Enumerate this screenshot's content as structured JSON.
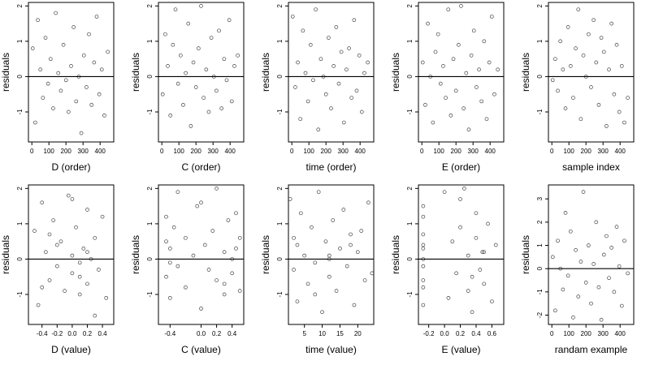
{
  "chart_data": [
    {
      "type": "scatter",
      "x_label": "D (order)",
      "y_label": "residuals",
      "xlim": [
        -20,
        480
      ],
      "ylim": [
        -1.85,
        2.1
      ],
      "xticks": [
        0,
        100,
        200,
        300,
        400
      ],
      "yticks": [
        -1,
        0,
        1,
        2
      ],
      "hline": 0,
      "series": [
        {
          "color": "#444444",
          "x": [
            5,
            20,
            35,
            50,
            65,
            80,
            95,
            110,
            125,
            140,
            155,
            170,
            185,
            200,
            215,
            230,
            245,
            260,
            275,
            290,
            305,
            320,
            335,
            350,
            365,
            380,
            395,
            410,
            425,
            445
          ],
          "values": [
            0.8,
            -1.3,
            1.6,
            0.2,
            -0.6,
            1.1,
            -0.2,
            0.5,
            -0.9,
            1.8,
            0.1,
            -0.4,
            0.9,
            -0.1,
            -1.0,
            0.3,
            1.4,
            -0.7,
            0.0,
            -1.6,
            0.6,
            -0.3,
            1.2,
            -0.8,
            0.4,
            1.7,
            -0.5,
            0.2,
            -1.1,
            0.7
          ]
        }
      ]
    },
    {
      "type": "scatter",
      "x_label": "C (order)",
      "y_label": "residuals",
      "xlim": [
        -20,
        480
      ],
      "ylim": [
        -1.85,
        2.1
      ],
      "xticks": [
        0,
        100,
        200,
        300,
        400
      ],
      "yticks": [
        -1,
        0,
        1,
        2
      ],
      "hline": 0,
      "series": [
        {
          "color": "#444444",
          "x": [
            5,
            20,
            35,
            50,
            65,
            80,
            95,
            110,
            125,
            140,
            155,
            170,
            185,
            200,
            215,
            230,
            245,
            260,
            275,
            290,
            305,
            320,
            335,
            350,
            365,
            380,
            395,
            410,
            425,
            445
          ],
          "values": [
            -0.5,
            1.2,
            0.3,
            -1.1,
            0.9,
            1.9,
            -0.2,
            0.6,
            -0.8,
            0.1,
            1.5,
            -1.4,
            0.4,
            -0.3,
            0.8,
            2.0,
            -0.6,
            0.2,
            -1.0,
            1.1,
            0.0,
            -0.4,
            1.3,
            -0.9,
            0.5,
            -0.1,
            1.6,
            -0.7,
            0.3,
            0.6
          ]
        }
      ]
    },
    {
      "type": "scatter",
      "x_label": "time (order)",
      "y_label": "residuals",
      "xlim": [
        -20,
        480
      ],
      "ylim": [
        -1.85,
        2.1
      ],
      "xticks": [
        0,
        100,
        200,
        300,
        400
      ],
      "yticks": [
        -1,
        0,
        1,
        2
      ],
      "hline": 0,
      "series": [
        {
          "color": "#444444",
          "x": [
            5,
            20,
            35,
            50,
            65,
            80,
            95,
            110,
            125,
            140,
            155,
            170,
            185,
            200,
            215,
            230,
            245,
            260,
            275,
            290,
            305,
            320,
            335,
            350,
            365,
            380,
            395,
            410,
            425,
            445
          ],
          "values": [
            1.7,
            -0.3,
            0.4,
            -1.2,
            1.3,
            0.1,
            -0.7,
            0.9,
            -0.1,
            1.9,
            -1.5,
            0.5,
            0.0,
            -0.5,
            1.1,
            -0.9,
            0.3,
            1.4,
            -0.2,
            0.7,
            -1.3,
            0.2,
            0.8,
            -0.6,
            1.6,
            -0.4,
            0.6,
            -1.0,
            0.1,
            0.4
          ]
        }
      ]
    },
    {
      "type": "scatter",
      "x_label": "E (order)",
      "y_label": "residuals",
      "xlim": [
        -20,
        480
      ],
      "ylim": [
        -1.85,
        2.1
      ],
      "xticks": [
        0,
        100,
        200,
        300,
        400
      ],
      "yticks": [
        -1,
        0,
        1,
        2
      ],
      "hline": 0,
      "series": [
        {
          "color": "#444444",
          "x": [
            5,
            20,
            35,
            50,
            65,
            80,
            95,
            110,
            125,
            140,
            155,
            170,
            185,
            200,
            215,
            230,
            245,
            260,
            275,
            290,
            305,
            320,
            335,
            350,
            365,
            380,
            395,
            410,
            425,
            445
          ],
          "values": [
            0.4,
            -0.8,
            1.5,
            0.0,
            -1.3,
            0.7,
            1.2,
            -0.2,
            0.3,
            -0.6,
            1.9,
            -1.1,
            0.5,
            -0.4,
            0.9,
            2.0,
            -0.9,
            0.1,
            -1.5,
            0.6,
            1.3,
            -0.3,
            0.2,
            -0.7,
            1.0,
            -1.2,
            0.4,
            1.7,
            -0.5,
            0.2
          ]
        }
      ]
    },
    {
      "type": "scatter",
      "x_label": "sample index",
      "y_label": "residuals",
      "xlim": [
        -20,
        480
      ],
      "ylim": [
        -1.85,
        2.1
      ],
      "xticks": [
        0,
        100,
        200,
        300,
        400
      ],
      "yticks": [
        -1,
        0,
        1,
        2
      ],
      "hline": 0,
      "series": [
        {
          "color": "#444444",
          "x": [
            5,
            20,
            35,
            50,
            65,
            80,
            95,
            110,
            125,
            140,
            155,
            170,
            185,
            200,
            215,
            230,
            245,
            260,
            275,
            290,
            305,
            320,
            335,
            350,
            365,
            380,
            395,
            410,
            425,
            445
          ],
          "values": [
            -0.1,
            0.5,
            -0.4,
            1.0,
            0.2,
            -0.9,
            1.4,
            0.3,
            -0.6,
            0.8,
            1.9,
            -1.2,
            0.6,
            0.0,
            1.2,
            -0.3,
            1.6,
            0.4,
            -0.8,
            1.1,
            0.7,
            -1.4,
            0.2,
            1.5,
            -0.5,
            0.9,
            -1.0,
            0.3,
            -1.3,
            -0.6
          ]
        }
      ]
    },
    {
      "type": "scatter",
      "x_label": "D (value)",
      "y_label": "residuals",
      "xlim": [
        -0.58,
        0.55
      ],
      "ylim": [
        -1.85,
        2.1
      ],
      "xticks": [
        -0.4,
        -0.2,
        {
          "value": 0,
          "label": "0.0"
        },
        0.2,
        0.4
      ],
      "yticks": [
        -1,
        0,
        1,
        2
      ],
      "hline": 0,
      "series": [
        {
          "color": "#444444",
          "x": [
            -0.5,
            -0.45,
            -0.4,
            -0.35,
            -0.3,
            -0.25,
            -0.2,
            -0.15,
            -0.1,
            -0.05,
            0.0,
            0.0,
            0.05,
            0.1,
            0.1,
            0.15,
            0.2,
            0.2,
            0.25,
            0.3,
            0.3,
            0.35,
            0.4,
            -0.4,
            -0.2,
            0.0,
            0.1,
            0.2,
            0.45,
            -0.3
          ],
          "values": [
            0.8,
            -1.3,
            1.6,
            0.2,
            -0.6,
            1.1,
            -0.2,
            0.5,
            -0.9,
            1.8,
            0.1,
            -0.4,
            0.9,
            -0.1,
            -1.0,
            0.3,
            1.4,
            -0.7,
            0.0,
            -1.6,
            0.6,
            -0.3,
            1.2,
            -0.8,
            0.4,
            1.7,
            -0.5,
            0.2,
            -1.1,
            0.7
          ]
        }
      ]
    },
    {
      "type": "scatter",
      "x_label": "C (value)",
      "y_label": "residuals",
      "xlim": [
        -0.55,
        0.55
      ],
      "ylim": [
        -1.85,
        2.1
      ],
      "xticks": [
        -0.4,
        {
          "value": 0,
          "label": "0.0"
        },
        0.2,
        0.4
      ],
      "yticks": [
        -1,
        0,
        1,
        2
      ],
      "hline": 0,
      "series": [
        {
          "color": "#444444",
          "x": [
            -0.45,
            -0.45,
            -0.4,
            -0.4,
            -0.35,
            -0.3,
            -0.3,
            -0.2,
            -0.2,
            -0.1,
            -0.05,
            0.0,
            0.05,
            0.1,
            0.15,
            0.2,
            0.2,
            0.3,
            0.3,
            0.35,
            0.4,
            0.4,
            0.45,
            0.5,
            -0.45,
            -0.4,
            0.0,
            0.3,
            0.45,
            0.5
          ],
          "values": [
            -0.5,
            1.2,
            0.3,
            -1.1,
            0.9,
            1.9,
            -0.2,
            0.6,
            -0.8,
            0.1,
            1.5,
            -1.4,
            0.4,
            -0.3,
            0.8,
            2.0,
            -0.6,
            0.2,
            -1.0,
            1.1,
            0.0,
            -0.4,
            1.3,
            -0.9,
            0.5,
            -0.1,
            1.6,
            -0.7,
            0.3,
            0.6
          ]
        }
      ]
    },
    {
      "type": "scatter",
      "x_label": "time (value)",
      "y_label": "residuals",
      "xlim": [
        0.5,
        24.5
      ],
      "ylim": [
        -1.85,
        2.1
      ],
      "xticks": [
        5,
        10,
        15,
        20
      ],
      "yticks": [
        -1,
        0,
        1,
        2
      ],
      "hline": 0,
      "series": [
        {
          "color": "#444444",
          "x": [
            1,
            2,
            3,
            3,
            4,
            5,
            6,
            7,
            8,
            9,
            10,
            11,
            12,
            12,
            13,
            14,
            15,
            16,
            17,
            18,
            19,
            20,
            21,
            22,
            23,
            24,
            2,
            8,
            12,
            18
          ],
          "values": [
            1.7,
            -0.3,
            0.4,
            -1.2,
            1.3,
            0.1,
            -0.7,
            0.9,
            -0.1,
            1.9,
            -1.5,
            0.5,
            0.0,
            -0.5,
            1.1,
            -0.9,
            0.3,
            1.4,
            -0.2,
            0.7,
            -1.3,
            0.2,
            0.8,
            -0.6,
            1.6,
            -0.4,
            0.6,
            -1.0,
            0.1,
            0.4
          ]
        }
      ]
    },
    {
      "type": "scatter",
      "x_label": "E (value)",
      "y_label": "residuals",
      "xlim": [
        -0.33,
        0.75
      ],
      "ylim": [
        -1.85,
        2.1
      ],
      "xticks": [
        -0.2,
        {
          "value": 0,
          "label": "0.0"
        },
        0.2,
        0.4,
        0.6
      ],
      "yticks": [
        -1,
        0,
        1,
        2
      ],
      "hline": 0,
      "series": [
        {
          "color": "#444444",
          "x": [
            -0.27,
            -0.27,
            -0.27,
            -0.27,
            -0.27,
            -0.27,
            -0.27,
            -0.27,
            -0.27,
            -0.27,
            0.0,
            0.05,
            0.1,
            0.15,
            0.2,
            0.25,
            0.3,
            0.3,
            0.35,
            0.4,
            0.4,
            0.45,
            0.5,
            0.5,
            0.55,
            0.6,
            0.65,
            0.2,
            0.35,
            0.48
          ],
          "values": [
            0.4,
            -0.8,
            1.5,
            0.0,
            -1.3,
            0.7,
            1.2,
            -0.2,
            0.3,
            -0.6,
            1.9,
            -1.1,
            0.5,
            -0.4,
            0.9,
            2.0,
            -0.9,
            0.1,
            -1.5,
            0.6,
            1.3,
            -0.3,
            0.2,
            -0.7,
            1.0,
            -1.2,
            0.4,
            1.7,
            -0.5,
            0.2
          ]
        }
      ]
    },
    {
      "type": "scatter",
      "x_label": "randam example",
      "y_label": "residuals",
      "xlim": [
        -20,
        480
      ],
      "ylim": [
        -2.4,
        3.6
      ],
      "xticks": [
        0,
        100,
        200,
        300,
        400
      ],
      "yticks": [
        -2,
        -1,
        0,
        1,
        2,
        3
      ],
      "hline": 0,
      "series": [
        {
          "color": "#444444",
          "x": [
            5,
            20,
            35,
            50,
            65,
            80,
            95,
            110,
            125,
            140,
            155,
            170,
            185,
            200,
            215,
            230,
            245,
            260,
            275,
            290,
            305,
            320,
            335,
            350,
            365,
            380,
            395,
            410,
            425,
            445
          ],
          "values": [
            0.5,
            -1.8,
            1.2,
            0.0,
            -0.9,
            2.4,
            -0.3,
            1.6,
            -2.1,
            0.8,
            -1.2,
            0.3,
            3.3,
            -0.6,
            1.0,
            -1.5,
            0.2,
            2.0,
            -0.8,
            -2.2,
            0.6,
            1.4,
            -0.4,
            0.9,
            -1.0,
            1.8,
            0.1,
            -1.6,
            1.2,
            -0.2
          ]
        }
      ]
    }
  ]
}
